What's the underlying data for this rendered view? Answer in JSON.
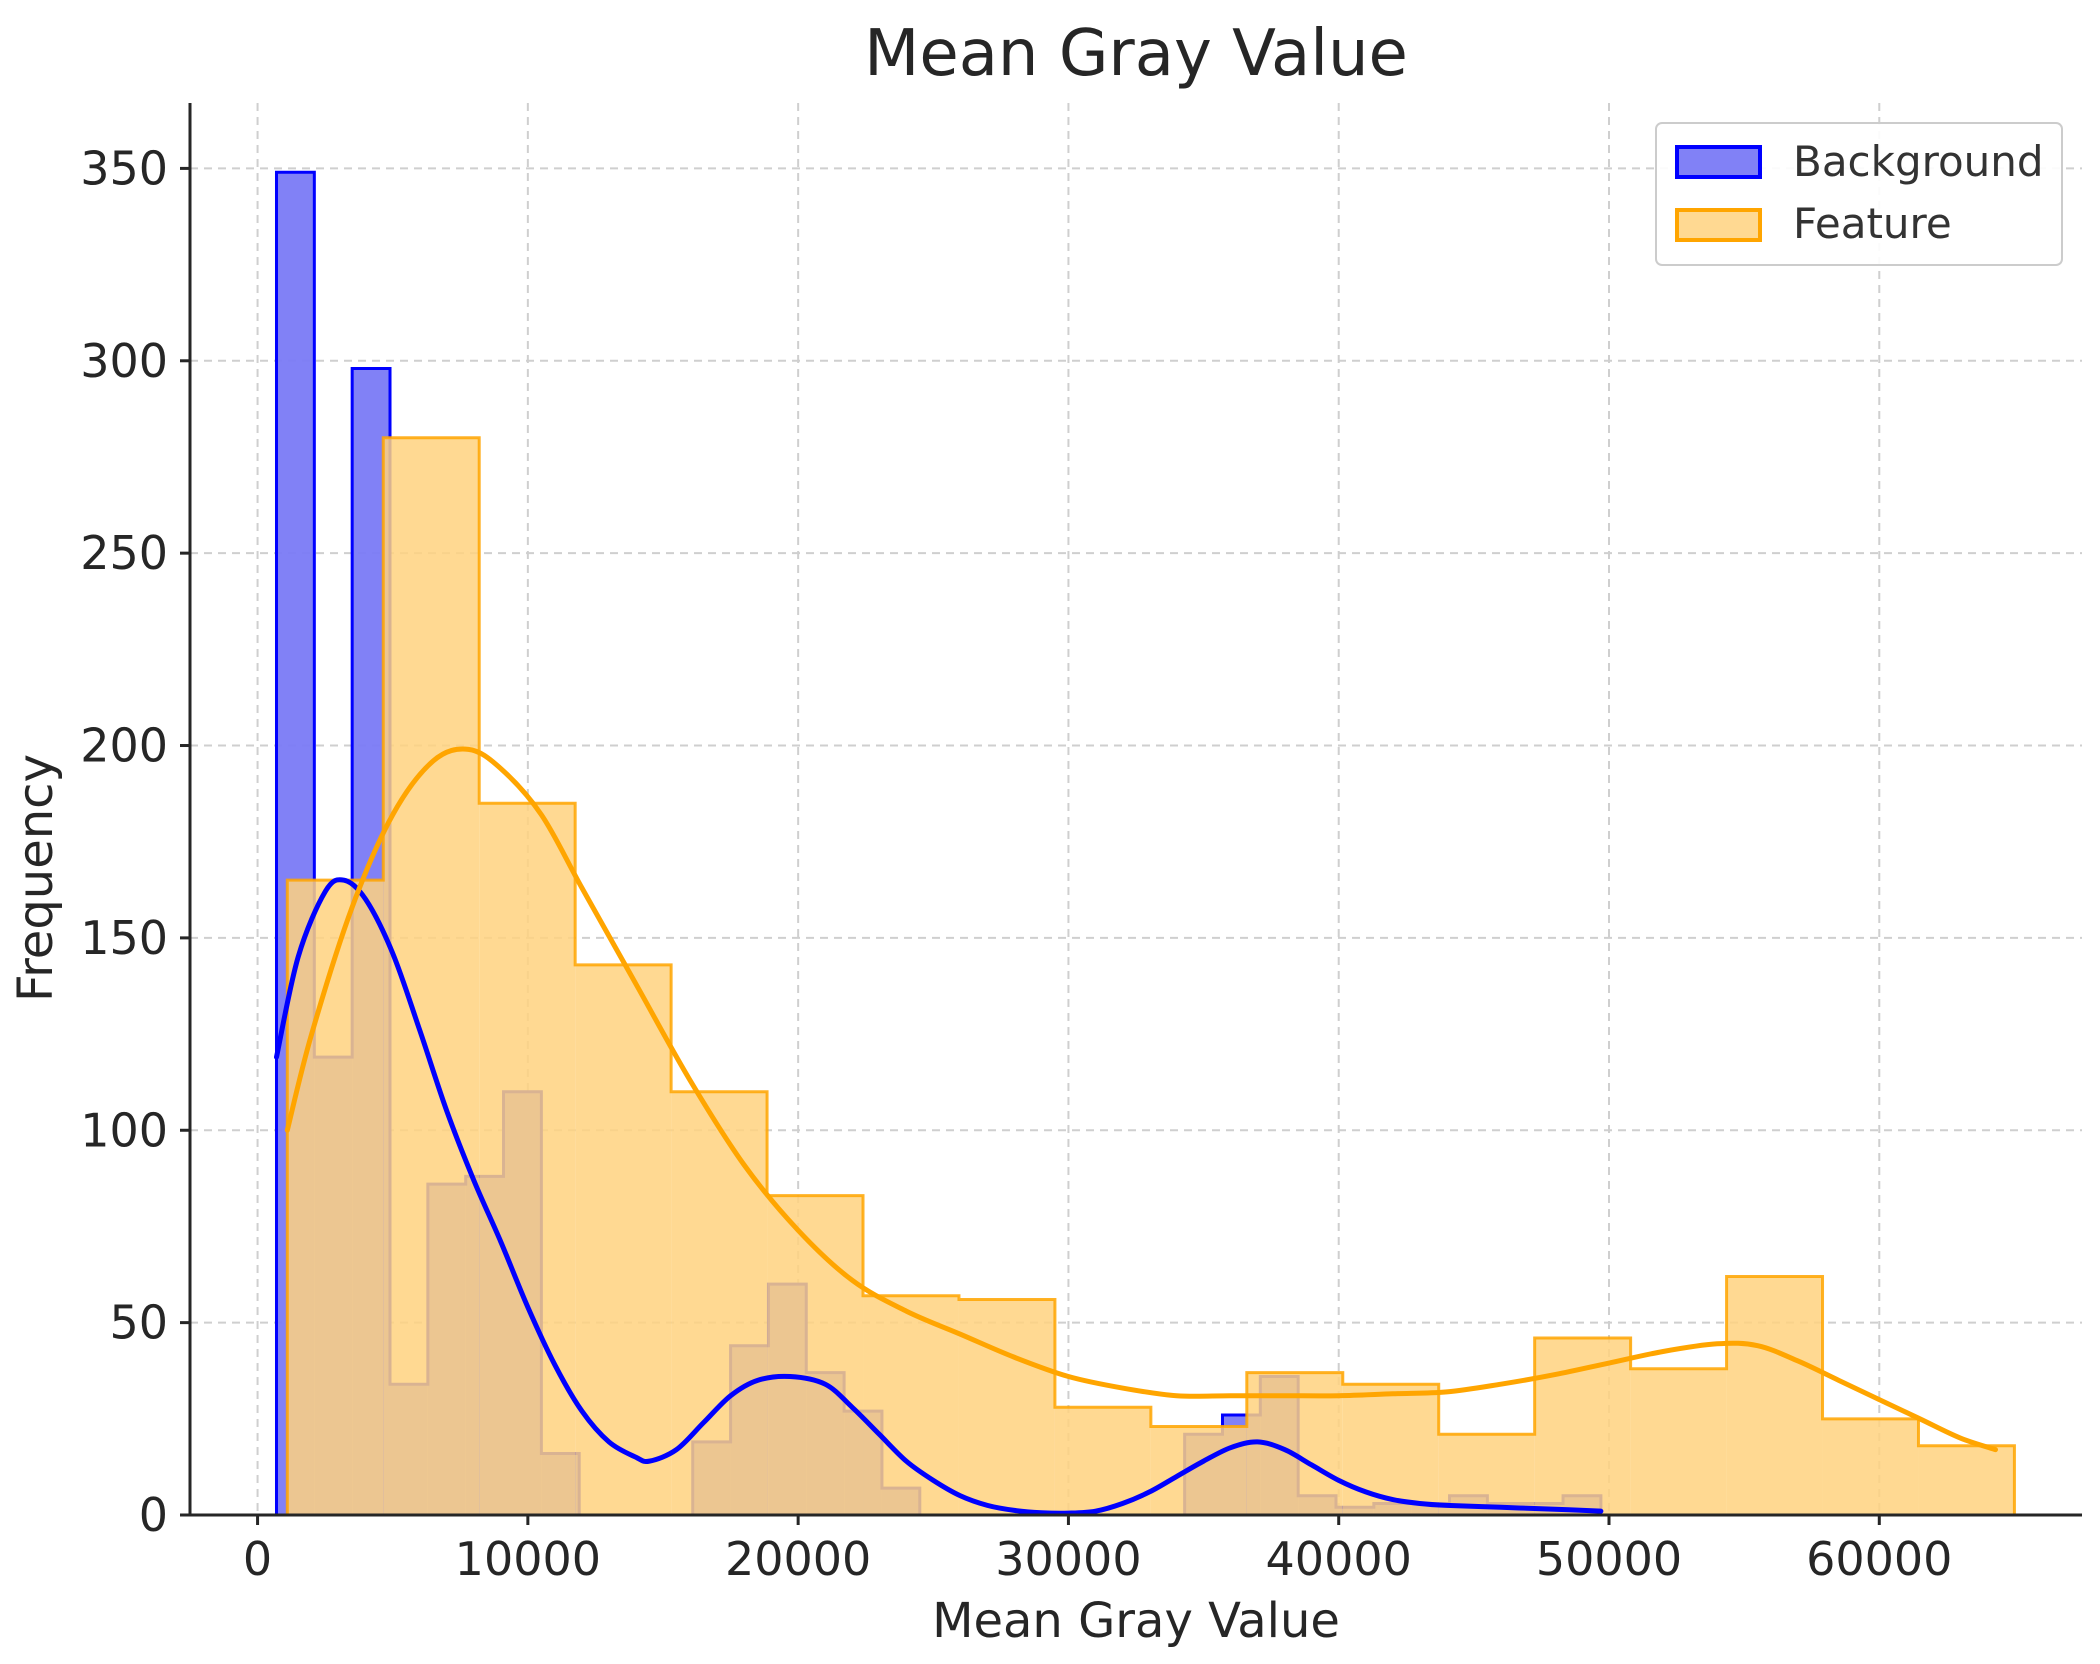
{
  "chart_data": {
    "type": "histogram",
    "title": "Mean Gray Value",
    "xlabel": "Mean Gray Value",
    "ylabel": "Frequency",
    "xlim": [
      -2500,
      67500
    ],
    "ylim": [
      0,
      367
    ],
    "xticks": [
      0,
      10000,
      20000,
      30000,
      40000,
      50000,
      60000
    ],
    "yticks": [
      0,
      50,
      100,
      150,
      200,
      250,
      300,
      350
    ],
    "grid": true,
    "legend": {
      "position": "top-right"
    },
    "series": [
      {
        "name": "Background",
        "color": "#0000ff",
        "fill": "#7a7af5",
        "bin_edges": [
          700,
          2100,
          3500,
          4900,
          6300,
          7700,
          9100,
          10500,
          11900,
          13300,
          14700,
          16100,
          17500,
          18900,
          20300,
          21700,
          23100,
          24500,
          25900,
          27300,
          28700,
          30100,
          31500,
          32900,
          34300,
          35700,
          37100,
          38500,
          39900,
          41300,
          42700,
          44100,
          45500,
          46900,
          48300,
          49700
        ],
        "counts": [
          349,
          119,
          298,
          34,
          86,
          88,
          110,
          16,
          0,
          0,
          0,
          19,
          44,
          60,
          37,
          27,
          7,
          0,
          0,
          0,
          0,
          0,
          0,
          0,
          21,
          26,
          36,
          5,
          2,
          3,
          3,
          5,
          3,
          3,
          5
        ],
        "kde": {
          "x": [
            700,
            1500,
            2500,
            3200,
            4000,
            5000,
            6000,
            7000,
            8000,
            9000,
            10000,
            11000,
            12000,
            13000,
            14000,
            14500,
            15500,
            16500,
            17500,
            18500,
            19700,
            21000,
            22000,
            23000,
            24000,
            25000,
            26000,
            27000,
            28000,
            29000,
            30000,
            31000,
            32000,
            33000,
            34000,
            35000,
            36000,
            37000,
            38000,
            39000,
            40000,
            41000,
            42000,
            43000,
            44000,
            46000,
            48000,
            49700
          ],
          "y": [
            119,
            145,
            162,
            165,
            160,
            146,
            126,
            105,
            87,
            71,
            54,
            39,
            27,
            19,
            15,
            14,
            17,
            24,
            31,
            35,
            36,
            34,
            28,
            21,
            14,
            9,
            5,
            2.5,
            1.2,
            0.6,
            0.5,
            1,
            3,
            6,
            10,
            14,
            17.5,
            19,
            17,
            13,
            9,
            6,
            4,
            3,
            2.5,
            2,
            1.5,
            1
          ]
        }
      },
      {
        "name": "Feature",
        "color": "#ffa500",
        "fill": "#ffd27f",
        "bin_edges": [
          1100,
          4650,
          8200,
          11750,
          15300,
          18850,
          22400,
          25950,
          29500,
          33050,
          36600,
          40150,
          43700,
          47250,
          50800,
          54350,
          57900,
          61450,
          65000
        ],
        "counts": [
          165,
          280,
          185,
          143,
          110,
          83,
          57,
          56,
          28,
          23,
          37,
          34,
          21,
          46,
          38,
          62,
          25,
          18
        ],
        "kde": {
          "x": [
            1100,
            2000,
            3500,
            5000,
            6500,
            7800,
            9000,
            10500,
            12000,
            14000,
            16000,
            18000,
            20000,
            22000,
            24000,
            26000,
            28000,
            30000,
            32000,
            34000,
            36000,
            38000,
            40000,
            42000,
            44000,
            46000,
            48000,
            50000,
            52000,
            54000,
            55500,
            57000,
            58500,
            60000,
            61500,
            63000,
            64300
          ],
          "y": [
            100,
            125,
            158,
            182,
            196,
            199,
            194,
            182,
            163,
            138,
            113,
            91,
            74,
            61,
            53,
            47,
            41,
            36,
            33,
            31,
            31,
            31,
            31,
            31.5,
            32,
            34,
            36.5,
            39.5,
            42.5,
            44.5,
            44,
            40,
            35,
            30,
            25,
            20,
            17
          ]
        }
      }
    ]
  }
}
